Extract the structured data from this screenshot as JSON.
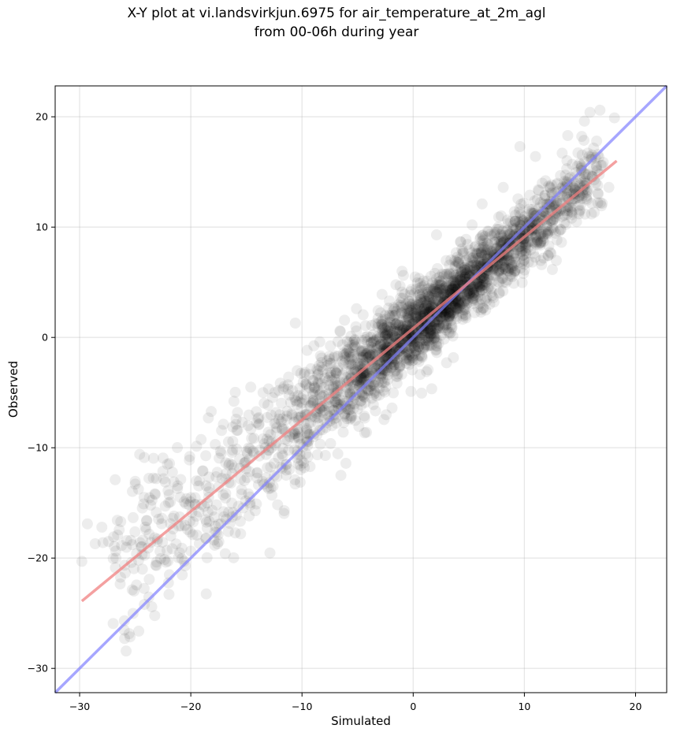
{
  "chart_data": {
    "type": "scatter",
    "title": "X-Y plot at vi.landsvirkjun.6975 for air_temperature_at_2m_agl",
    "subtitle": "from 00-06h during year",
    "xlabel": "Simulated",
    "ylabel": "Observed",
    "xlim": [
      -32.2,
      22.8
    ],
    "ylim": [
      -32.2,
      22.8
    ],
    "x_ticks": [
      -30,
      -20,
      -10,
      0,
      10,
      20
    ],
    "y_ticks": [
      -30,
      -20,
      -10,
      0,
      10,
      20
    ],
    "x_tick_labels": [
      "−30",
      "−20",
      "−10",
      "0",
      "10",
      "20"
    ],
    "y_tick_labels": [
      "−30",
      "−20",
      "−10",
      "0",
      "10",
      "20"
    ],
    "grid": true,
    "point_color": "#000000",
    "point_alpha": 0.07,
    "points": [
      [
        -29.8,
        -20.3
      ],
      [
        -29.3,
        -16.9
      ],
      [
        -28.6,
        -18.7
      ],
      [
        -28.0,
        -17.2
      ],
      [
        -27.9,
        -18.6
      ],
      [
        -27.4,
        -18.5
      ],
      [
        -26.8,
        -12.9
      ],
      [
        -26.3,
        -16.7
      ],
      [
        -25.4,
        -18.4
      ],
      [
        -25.0,
        -13.3
      ],
      [
        -24.6,
        -10.6
      ],
      [
        -24.2,
        -14.5
      ],
      [
        -23.6,
        -15.2
      ],
      [
        -23.1,
        -12.8
      ],
      [
        -22.6,
        -16.4
      ],
      [
        -22.1,
        -11.5
      ],
      [
        -21.8,
        -18.0
      ],
      [
        -21.2,
        -13.7
      ],
      [
        -20.6,
        -14.9
      ],
      [
        -20.1,
        -10.8
      ],
      [
        -19.5,
        -16.2
      ],
      [
        -18.9,
        -12.1
      ],
      [
        -18.4,
        -14.0
      ],
      [
        -17.8,
        -9.7
      ],
      [
        -17.3,
        -16.9
      ],
      [
        -16.9,
        -19.6
      ],
      [
        -16.4,
        -13.2
      ],
      [
        -15.8,
        -6.8
      ],
      [
        -15.2,
        -11.4
      ],
      [
        -14.6,
        -8.3
      ],
      [
        -14.1,
        -15.1
      ],
      [
        -13.5,
        -5.0
      ],
      [
        -13.0,
        -10.2
      ],
      [
        -12.6,
        -13.5
      ],
      [
        -12.1,
        -7.4
      ],
      [
        -11.6,
        -15.7
      ],
      [
        -11.1,
        -9.0
      ],
      [
        -10.6,
        1.3
      ],
      [
        -10.2,
        -4.6
      ],
      [
        -9.8,
        -11.8
      ],
      [
        -9.3,
        -6.2
      ],
      [
        -8.9,
        -8.7
      ],
      [
        -8.4,
        -0.4
      ],
      [
        -7.9,
        -10.7
      ],
      [
        -7.4,
        -3.2
      ],
      [
        -7.0,
        -5.8
      ],
      [
        -6.5,
        -12.5
      ],
      [
        -6.1,
        -1.5
      ],
      [
        -5.6,
        -7.1
      ],
      [
        -5.1,
        2.6
      ],
      [
        -4.7,
        -4.2
      ],
      [
        -4.2,
        -8.6
      ],
      [
        -3.7,
        -0.9
      ],
      [
        -3.3,
        -5.3
      ],
      [
        -2.8,
        3.9
      ],
      [
        -2.4,
        -3.0
      ],
      [
        -1.9,
        -6.4
      ],
      [
        -1.5,
        0.5
      ],
      [
        -1.0,
        6.0
      ],
      [
        -0.6,
        -2.1
      ],
      [
        -0.2,
        -4.9
      ],
      [
        0.3,
        1.8
      ],
      [
        0.7,
        -0.6
      ],
      [
        1.2,
        -3.1
      ],
      [
        1.6,
        3.4
      ],
      [
        2.1,
        9.3
      ],
      [
        2.5,
        0.8
      ],
      [
        3.0,
        -2.3
      ],
      [
        3.4,
        5.1
      ],
      [
        3.9,
        1.7
      ],
      [
        4.4,
        7.6
      ],
      [
        4.8,
        3.0
      ],
      [
        5.3,
        10.2
      ],
      [
        5.8,
        4.6
      ],
      [
        6.2,
        12.1
      ],
      [
        6.7,
        6.4
      ],
      [
        7.2,
        3.6
      ],
      [
        7.7,
        9.8
      ],
      [
        8.1,
        13.6
      ],
      [
        8.6,
        7.0
      ],
      [
        9.1,
        11.4
      ],
      [
        9.6,
        17.3
      ],
      [
        10.1,
        8.5
      ],
      [
        10.5,
        12.9
      ],
      [
        11.0,
        16.4
      ],
      [
        11.5,
        9.4
      ],
      [
        11.9,
        14.2
      ],
      [
        12.4,
        7.6
      ],
      [
        12.9,
        11.6
      ],
      [
        13.4,
        16.7
      ],
      [
        13.9,
        18.3
      ],
      [
        14.4,
        13.1
      ],
      [
        14.9,
        11.2
      ],
      [
        15.4,
        19.6
      ],
      [
        15.9,
        20.4
      ],
      [
        16.5,
        17.8
      ],
      [
        17.0,
        15.6
      ],
      [
        17.6,
        13.6
      ],
      [
        18.1,
        19.9
      ],
      [
        16.8,
        20.6
      ]
    ],
    "fit_line": {
      "name": "",
      "color": "#f08080",
      "x": [
        -29.8,
        18.3
      ],
      "y": [
        -23.9,
        16.0
      ]
    },
    "identity_line": {
      "name": "",
      "color": "#8080ff",
      "x": [
        -32.2,
        22.8
      ],
      "y": [
        -32.2,
        22.8
      ]
    }
  }
}
